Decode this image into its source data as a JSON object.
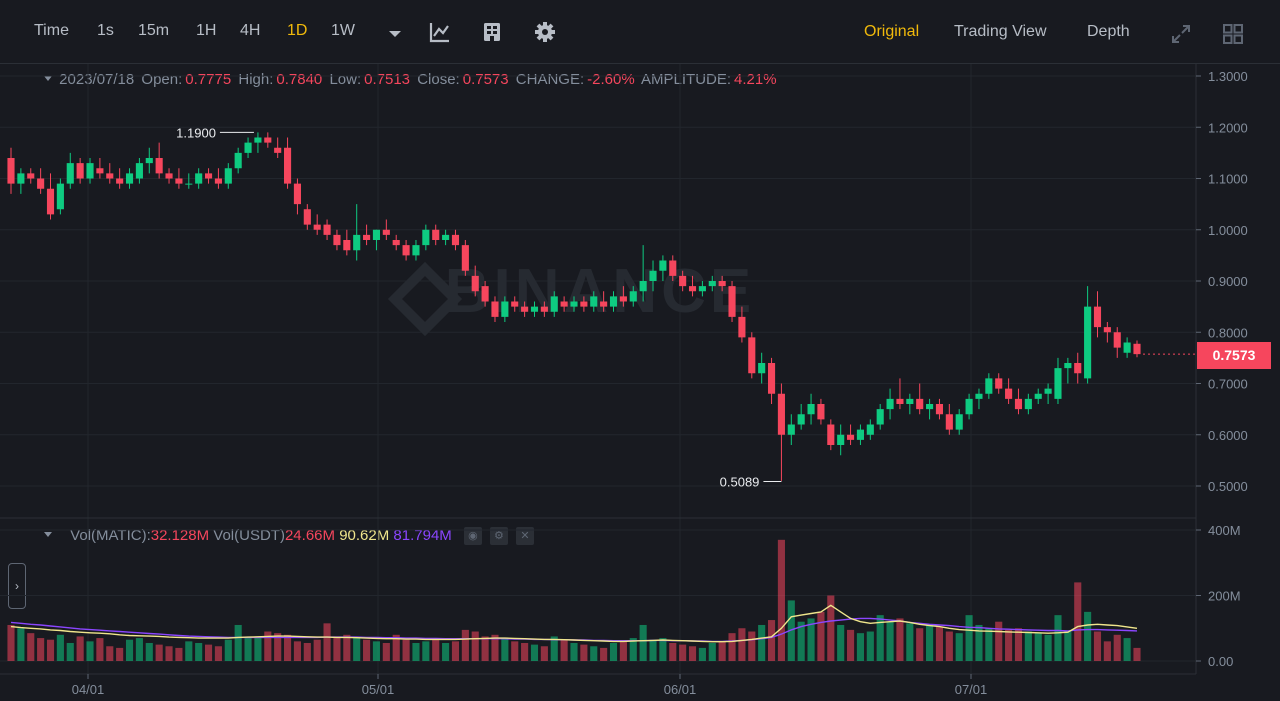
{
  "toolbar": {
    "intervals": [
      "Time",
      "1s",
      "15m",
      "1H",
      "4H",
      "1D",
      "1W"
    ],
    "active_interval": "1D",
    "views": [
      "Original",
      "Trading View",
      "Depth"
    ],
    "active_view": "Original"
  },
  "ohlc_info": {
    "date": "2023/07/18",
    "open_label": "Open:",
    "open": "0.7775",
    "high_label": "High:",
    "high": "0.7840",
    "low_label": "Low:",
    "low": "0.7513",
    "close_label": "Close:",
    "close": "0.7573",
    "change_label": "CHANGE:",
    "change": "-2.60%",
    "amplitude_label": "AMPLITUDE:",
    "amplitude": "4.21%"
  },
  "volume_info": {
    "matic_label": "Vol(MATIC):",
    "matic": "32.128M",
    "usdt_label": "Vol(USDT)",
    "usdt": "24.66M",
    "ma1": "90.62M",
    "ma2": "81.794M"
  },
  "watermark": "BINANCE",
  "current_price_tag": "0.7573",
  "colors": {
    "up": "#0ecb81",
    "down": "#f6465d",
    "bg": "#181a20",
    "accent": "#f0b90b",
    "ma1": "#f0e68c",
    "ma2": "#8b46ff"
  },
  "chart_data": {
    "type": "candlestick",
    "price_axis": {
      "ticks": [
        "1.3000",
        "1.2000",
        "1.1000",
        "1.0000",
        "0.9000",
        "0.8000",
        "0.7000",
        "0.6000",
        "0.5000"
      ],
      "range": [
        0.445,
        1.31
      ]
    },
    "volume_axis": {
      "ticks": [
        "400M",
        "200M",
        "0.00"
      ],
      "range": [
        0,
        420
      ]
    },
    "x_axis": {
      "ticks": [
        "04/01",
        "05/01",
        "06/01",
        "07/01"
      ]
    },
    "annotations": {
      "high": "1.1900",
      "low": "0.5089"
    },
    "candles": [
      [
        1.14,
        1.16,
        1.07,
        1.09
      ],
      [
        1.09,
        1.12,
        1.07,
        1.11
      ],
      [
        1.11,
        1.12,
        1.09,
        1.1
      ],
      [
        1.1,
        1.12,
        1.07,
        1.08
      ],
      [
        1.08,
        1.11,
        1.02,
        1.03
      ],
      [
        1.04,
        1.1,
        1.03,
        1.09
      ],
      [
        1.09,
        1.15,
        1.08,
        1.13
      ],
      [
        1.13,
        1.14,
        1.09,
        1.1
      ],
      [
        1.1,
        1.14,
        1.09,
        1.13
      ],
      [
        1.12,
        1.14,
        1.1,
        1.11
      ],
      [
        1.11,
        1.13,
        1.09,
        1.1
      ],
      [
        1.1,
        1.12,
        1.08,
        1.09
      ],
      [
        1.09,
        1.12,
        1.08,
        1.11
      ],
      [
        1.1,
        1.14,
        1.09,
        1.13
      ],
      [
        1.13,
        1.16,
        1.11,
        1.14
      ],
      [
        1.14,
        1.17,
        1.1,
        1.11
      ],
      [
        1.11,
        1.12,
        1.09,
        1.1
      ],
      [
        1.1,
        1.12,
        1.08,
        1.09
      ],
      [
        1.09,
        1.11,
        1.08,
        1.09
      ],
      [
        1.09,
        1.12,
        1.08,
        1.11
      ],
      [
        1.11,
        1.12,
        1.09,
        1.1
      ],
      [
        1.1,
        1.12,
        1.08,
        1.09
      ],
      [
        1.09,
        1.13,
        1.08,
        1.12
      ],
      [
        1.12,
        1.16,
        1.11,
        1.15
      ],
      [
        1.15,
        1.18,
        1.14,
        1.17
      ],
      [
        1.17,
        1.19,
        1.15,
        1.18
      ],
      [
        1.18,
        1.19,
        1.16,
        1.17
      ],
      [
        1.16,
        1.18,
        1.14,
        1.15
      ],
      [
        1.16,
        1.18,
        1.08,
        1.09
      ],
      [
        1.09,
        1.1,
        1.03,
        1.05
      ],
      [
        1.04,
        1.05,
        1.0,
        1.01
      ],
      [
        1.01,
        1.03,
        0.99,
        1.0
      ],
      [
        1.01,
        1.02,
        0.98,
        0.99
      ],
      [
        0.99,
        1.0,
        0.96,
        0.97
      ],
      [
        0.98,
        1.0,
        0.95,
        0.96
      ],
      [
        0.96,
        1.05,
        0.94,
        0.99
      ],
      [
        0.99,
        1.01,
        0.97,
        0.98
      ],
      [
        0.98,
        1.0,
        0.96,
        1.0
      ],
      [
        1.0,
        1.02,
        0.98,
        0.99
      ],
      [
        0.98,
        0.99,
        0.96,
        0.97
      ],
      [
        0.97,
        0.98,
        0.94,
        0.95
      ],
      [
        0.95,
        0.98,
        0.94,
        0.97
      ],
      [
        0.97,
        1.01,
        0.96,
        1.0
      ],
      [
        1.0,
        1.01,
        0.97,
        0.98
      ],
      [
        0.98,
        1.0,
        0.97,
        0.99
      ],
      [
        0.99,
        1.0,
        0.96,
        0.97
      ],
      [
        0.97,
        0.98,
        0.91,
        0.92
      ],
      [
        0.91,
        0.93,
        0.87,
        0.88
      ],
      [
        0.89,
        0.9,
        0.85,
        0.86
      ],
      [
        0.86,
        0.87,
        0.82,
        0.83
      ],
      [
        0.83,
        0.87,
        0.82,
        0.86
      ],
      [
        0.86,
        0.87,
        0.84,
        0.85
      ],
      [
        0.85,
        0.86,
        0.83,
        0.84
      ],
      [
        0.84,
        0.86,
        0.83,
        0.85
      ],
      [
        0.85,
        0.86,
        0.83,
        0.84
      ],
      [
        0.84,
        0.88,
        0.83,
        0.87
      ],
      [
        0.86,
        0.87,
        0.84,
        0.85
      ],
      [
        0.85,
        0.87,
        0.84,
        0.86
      ],
      [
        0.86,
        0.87,
        0.84,
        0.85
      ],
      [
        0.85,
        0.88,
        0.84,
        0.87
      ],
      [
        0.86,
        0.88,
        0.84,
        0.85
      ],
      [
        0.85,
        0.88,
        0.84,
        0.87
      ],
      [
        0.87,
        0.89,
        0.85,
        0.86
      ],
      [
        0.86,
        0.89,
        0.85,
        0.88
      ],
      [
        0.88,
        0.97,
        0.86,
        0.9
      ],
      [
        0.9,
        0.94,
        0.88,
        0.92
      ],
      [
        0.92,
        0.95,
        0.9,
        0.94
      ],
      [
        0.94,
        0.95,
        0.9,
        0.91
      ],
      [
        0.91,
        0.92,
        0.88,
        0.89
      ],
      [
        0.89,
        0.91,
        0.87,
        0.88
      ],
      [
        0.88,
        0.9,
        0.87,
        0.89
      ],
      [
        0.89,
        0.91,
        0.88,
        0.9
      ],
      [
        0.9,
        0.91,
        0.88,
        0.89
      ],
      [
        0.89,
        0.9,
        0.82,
        0.83
      ],
      [
        0.83,
        0.85,
        0.78,
        0.79
      ],
      [
        0.79,
        0.8,
        0.71,
        0.72
      ],
      [
        0.72,
        0.76,
        0.7,
        0.74
      ],
      [
        0.74,
        0.75,
        0.66,
        0.68
      ],
      [
        0.68,
        0.7,
        0.51,
        0.6
      ],
      [
        0.6,
        0.64,
        0.58,
        0.62
      ],
      [
        0.62,
        0.66,
        0.61,
        0.64
      ],
      [
        0.64,
        0.68,
        0.62,
        0.66
      ],
      [
        0.66,
        0.67,
        0.62,
        0.63
      ],
      [
        0.62,
        0.63,
        0.57,
        0.58
      ],
      [
        0.58,
        0.62,
        0.56,
        0.6
      ],
      [
        0.6,
        0.62,
        0.58,
        0.59
      ],
      [
        0.59,
        0.62,
        0.58,
        0.61
      ],
      [
        0.6,
        0.63,
        0.59,
        0.62
      ],
      [
        0.62,
        0.66,
        0.61,
        0.65
      ],
      [
        0.65,
        0.69,
        0.63,
        0.67
      ],
      [
        0.67,
        0.71,
        0.65,
        0.66
      ],
      [
        0.66,
        0.68,
        0.64,
        0.67
      ],
      [
        0.67,
        0.7,
        0.64,
        0.65
      ],
      [
        0.65,
        0.67,
        0.63,
        0.66
      ],
      [
        0.66,
        0.67,
        0.63,
        0.64
      ],
      [
        0.64,
        0.66,
        0.6,
        0.61
      ],
      [
        0.61,
        0.65,
        0.6,
        0.64
      ],
      [
        0.64,
        0.68,
        0.63,
        0.67
      ],
      [
        0.67,
        0.69,
        0.65,
        0.68
      ],
      [
        0.68,
        0.72,
        0.67,
        0.71
      ],
      [
        0.71,
        0.72,
        0.68,
        0.69
      ],
      [
        0.69,
        0.71,
        0.66,
        0.67
      ],
      [
        0.67,
        0.69,
        0.64,
        0.65
      ],
      [
        0.65,
        0.68,
        0.64,
        0.67
      ],
      [
        0.67,
        0.69,
        0.66,
        0.68
      ],
      [
        0.68,
        0.7,
        0.66,
        0.69
      ],
      [
        0.67,
        0.75,
        0.66,
        0.73
      ],
      [
        0.73,
        0.75,
        0.7,
        0.74
      ],
      [
        0.74,
        0.76,
        0.7,
        0.72
      ],
      [
        0.71,
        0.89,
        0.7,
        0.85
      ],
      [
        0.85,
        0.88,
        0.79,
        0.81
      ],
      [
        0.81,
        0.82,
        0.78,
        0.8
      ],
      [
        0.8,
        0.81,
        0.75,
        0.77
      ],
      [
        0.76,
        0.79,
        0.75,
        0.78
      ],
      [
        0.7775,
        0.784,
        0.7513,
        0.7573
      ]
    ],
    "volumes_m": [
      110,
      100,
      85,
      70,
      65,
      80,
      55,
      75,
      60,
      70,
      45,
      40,
      65,
      70,
      55,
      50,
      45,
      40,
      60,
      55,
      50,
      45,
      65,
      110,
      70,
      75,
      90,
      85,
      80,
      60,
      55,
      65,
      115,
      75,
      80,
      70,
      65,
      60,
      55,
      80,
      65,
      55,
      60,
      70,
      55,
      60,
      95,
      90,
      75,
      80,
      70,
      60,
      55,
      50,
      45,
      75,
      65,
      55,
      50,
      45,
      40,
      55,
      60,
      70,
      110,
      65,
      70,
      55,
      50,
      45,
      40,
      55,
      60,
      85,
      100,
      90,
      110,
      125,
      370,
      185,
      120,
      130,
      150,
      200,
      110,
      95,
      85,
      90,
      140,
      120,
      130,
      115,
      100,
      110,
      105,
      90,
      85,
      140,
      110,
      100,
      120,
      95,
      100,
      90,
      85,
      80,
      140,
      90,
      240,
      150,
      90,
      60,
      80,
      70,
      40
    ],
    "ma_yellow_m": [
      105,
      102,
      100,
      98,
      95,
      93,
      90,
      88,
      86,
      85,
      83,
      80,
      78,
      77,
      76,
      75,
      73,
      72,
      71,
      70,
      70,
      70,
      70,
      72,
      73,
      74,
      75,
      76,
      76,
      75,
      74,
      73,
      73,
      72,
      72,
      71,
      70,
      69,
      68,
      68,
      67,
      67,
      66,
      66,
      66,
      66,
      67,
      68,
      69,
      70,
      70,
      69,
      68,
      67,
      66,
      66,
      65,
      64,
      63,
      62,
      61,
      60,
      60,
      61,
      62,
      63,
      64,
      63,
      62,
      61,
      60,
      59,
      59,
      60,
      63,
      66,
      70,
      74,
      100,
      135,
      140,
      145,
      150,
      170,
      150,
      130,
      120,
      115,
      118,
      120,
      122,
      118,
      112,
      108,
      105,
      100,
      96,
      94,
      92,
      91,
      90,
      89,
      88,
      87,
      86,
      85,
      86,
      88,
      105,
      110,
      112,
      110,
      108,
      104,
      100
    ],
    "ma_purple_m": [
      118,
      115,
      112,
      110,
      107,
      104,
      101,
      98,
      96,
      94,
      92,
      90,
      88,
      86,
      84,
      82,
      80,
      78,
      76,
      75,
      74,
      73,
      72,
      72,
      72,
      72,
      72,
      72,
      72,
      72,
      72,
      72,
      73,
      73,
      73,
      73,
      72,
      72,
      71,
      71,
      70,
      70,
      69,
      69,
      68,
      68,
      68,
      68,
      68,
      68,
      68,
      67,
      67,
      66,
      66,
      65,
      65,
      64,
      64,
      63,
      63,
      62,
      62,
      62,
      62,
      63,
      63,
      62,
      62,
      61,
      61,
      60,
      60,
      61,
      63,
      65,
      68,
      72,
      82,
      95,
      105,
      112,
      118,
      122,
      125,
      128,
      130,
      130,
      128,
      125,
      122,
      118,
      115,
      112,
      110,
      108,
      105,
      103,
      102,
      100,
      98,
      97,
      96,
      95,
      94,
      93,
      93,
      92,
      95,
      96,
      96,
      95,
      94,
      93,
      92
    ]
  }
}
